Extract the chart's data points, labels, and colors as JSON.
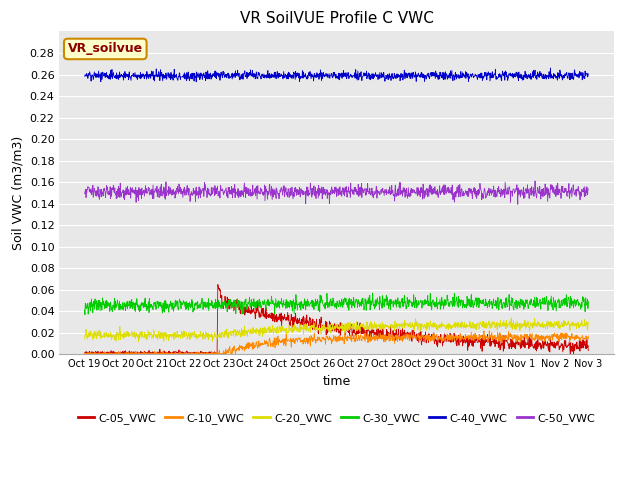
{
  "title": "VR SoilVUE Profile C VWC",
  "ylabel": "Soil VWC (m3/m3)",
  "xlabel": "time",
  "annotation": "VR_soilvue",
  "fig_bg": "#ffffff",
  "plot_bg": "#e8e8e8",
  "ylim": [
    0.0,
    0.3
  ],
  "yticks": [
    0.0,
    0.02,
    0.04,
    0.06,
    0.08,
    0.1,
    0.12,
    0.14,
    0.16,
    0.18,
    0.2,
    0.22,
    0.24,
    0.26,
    0.28
  ],
  "xtick_labels": [
    "Oct 19",
    "Oct 20",
    "Oct 21",
    "Oct 22",
    "Oct 23",
    "Oct 24",
    "Oct 25",
    "Oct 26",
    "Oct 27",
    "Oct 28",
    "Oct 29",
    "Oct 30",
    "Oct 31",
    "Nov 1",
    "Nov 2",
    "Nov 3"
  ],
  "n_points": 1400,
  "spike_index": 370,
  "series": {
    "C-05_VWC": {
      "color": "#cc0000"
    },
    "C-10_VWC": {
      "color": "#ff8800"
    },
    "C-20_VWC": {
      "color": "#dddd00"
    },
    "C-30_VWC": {
      "color": "#00cc00"
    },
    "C-40_VWC": {
      "color": "#0000cc"
    },
    "C-50_VWC": {
      "color": "#9933cc"
    }
  },
  "legend_order": [
    "C-05_VWC",
    "C-10_VWC",
    "C-20_VWC",
    "C-30_VWC",
    "C-40_VWC",
    "C-50_VWC"
  ]
}
